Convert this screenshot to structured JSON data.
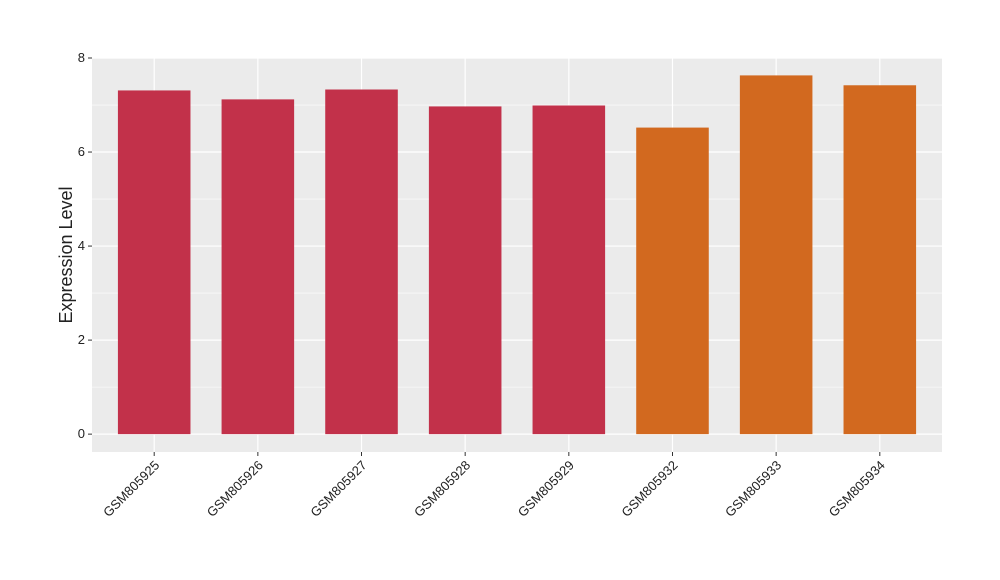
{
  "chart_data": {
    "type": "bar",
    "y_axis_label": "Expression Level",
    "categories": [
      "GSM805925",
      "GSM805926",
      "GSM805927",
      "GSM805928",
      "GSM805929",
      "GSM805932",
      "GSM805933",
      "GSM805934"
    ],
    "values": [
      7.31,
      7.12,
      7.33,
      6.97,
      6.99,
      6.52,
      7.63,
      7.42
    ],
    "colors": [
      "#c2314a",
      "#c2314a",
      "#c2314a",
      "#c2314a",
      "#c2314a",
      "#d2691f",
      "#d2691f",
      "#d2691f"
    ],
    "ylim": [
      -0.38,
      8.0
    ],
    "yticks": [
      0,
      2,
      4,
      6,
      8
    ],
    "minor_yticks": [
      1,
      3,
      5,
      7
    ],
    "grid": true
  }
}
